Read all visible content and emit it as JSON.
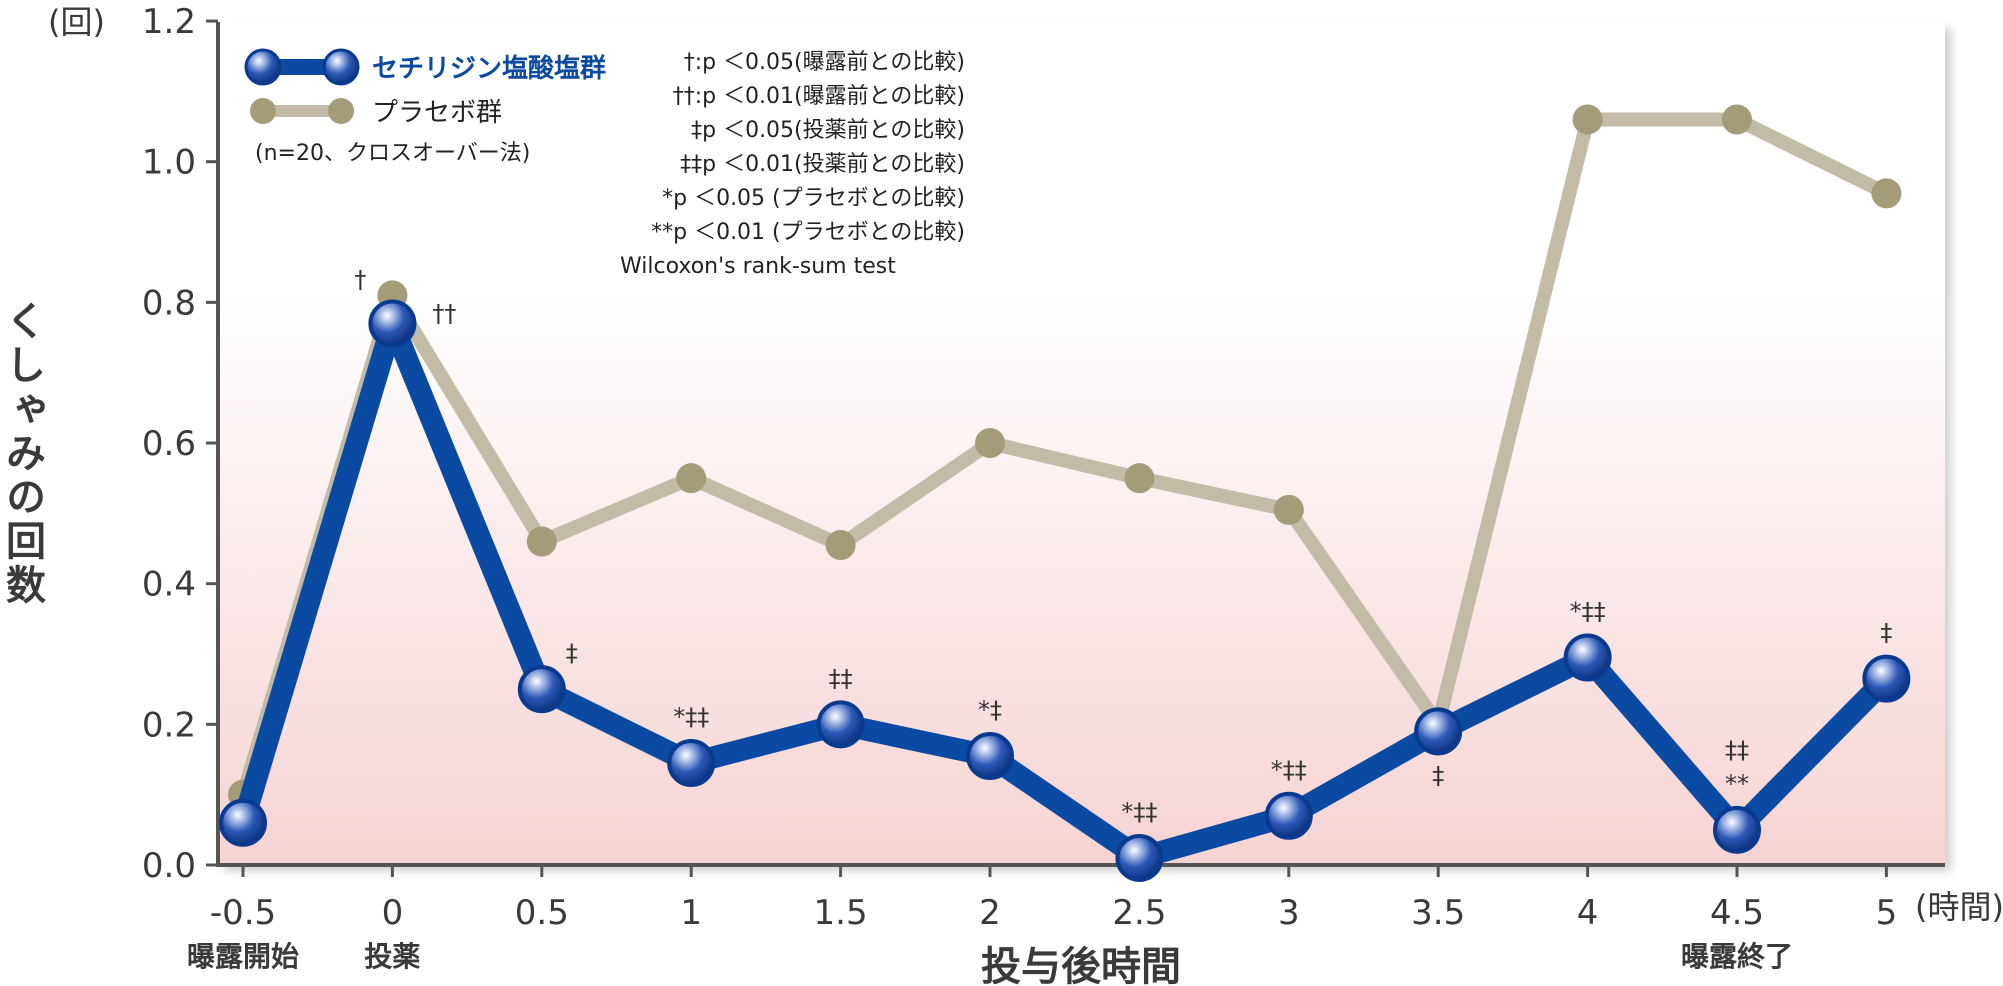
{
  "chart_data": {
    "type": "line",
    "y_unit": "(回)",
    "x_unit": "(時間)",
    "ylabel": "くしゃみの回数",
    "xlabel": "投与後時間",
    "x": [
      -0.5,
      0,
      0.5,
      1,
      1.5,
      2,
      2.5,
      3,
      3.5,
      4,
      4.5,
      5
    ],
    "x_tick_labels": [
      "-0.5",
      "0",
      "0.5",
      "1",
      "1.5",
      "2",
      "2.5",
      "3",
      "3.5",
      "4",
      "4.5",
      "5"
    ],
    "y_ticks": [
      "0.0",
      "0.2",
      "0.4",
      "0.6",
      "0.8",
      "1.0",
      "1.2"
    ],
    "ylim": [
      0,
      1.2
    ],
    "x_sublabels": [
      {
        "x": -0.5,
        "text": "曝露開始"
      },
      {
        "x": 0,
        "text": "投薬"
      },
      {
        "x": 4.5,
        "text": "曝露終了"
      }
    ],
    "series": [
      {
        "name": "プラセボ群",
        "color": "#c2bba6",
        "marker_color": "#a49c78",
        "values": [
          0.1,
          0.81,
          0.46,
          0.55,
          0.455,
          0.6,
          0.55,
          0.505,
          0.2,
          1.06,
          1.06,
          0.955
        ]
      },
      {
        "name": "セチリジン塩酸塩群",
        "color": "#0a4aa3",
        "marker_color": "#1f4fae",
        "values": [
          0.06,
          0.77,
          0.25,
          0.145,
          0.2,
          0.155,
          0.01,
          0.07,
          0.19,
          0.295,
          0.05,
          0.265
        ]
      }
    ],
    "significance": [
      {
        "x": 0,
        "y": 0.81,
        "text": "†",
        "pos": "above-left"
      },
      {
        "x": 0,
        "y": 0.77,
        "text": "††",
        "pos": "right"
      },
      {
        "x": 0.5,
        "y": 0.25,
        "text": "‡",
        "pos": "above-right"
      },
      {
        "x": 1,
        "y": 0.145,
        "text": "*‡‡",
        "pos": "above"
      },
      {
        "x": 1.5,
        "y": 0.2,
        "text": "‡‡",
        "pos": "above"
      },
      {
        "x": 2,
        "y": 0.155,
        "text": "*‡",
        "pos": "above"
      },
      {
        "x": 2.5,
        "y": 0.01,
        "text": "*‡‡",
        "pos": "above"
      },
      {
        "x": 3,
        "y": 0.07,
        "text": "*‡‡",
        "pos": "above"
      },
      {
        "x": 3.5,
        "y": 0.19,
        "text": "‡",
        "pos": "below"
      },
      {
        "x": 4,
        "y": 0.295,
        "text": "*‡‡",
        "pos": "above"
      },
      {
        "x": 4.5,
        "y": 0.05,
        "text": "‡‡",
        "pos": "above2"
      },
      {
        "x": 4.5,
        "y": 0.05,
        "text": "**",
        "pos": "above"
      },
      {
        "x": 5,
        "y": 0.265,
        "text": "‡",
        "pos": "above"
      }
    ],
    "legend": {
      "position": "top-left",
      "n_note": "(n=20、クロスオーバー法)"
    },
    "notes": [
      "†:p ＜0.05(曝露前との比較)",
      "††:p ＜0.01(曝露前との比較)",
      "‡p ＜0.05(投薬前との比較)",
      "‡‡p ＜0.01(投薬前との比較)",
      "*p ＜0.05 (プラセボとの比較)",
      "**p ＜0.01 (プラセボとの比較)",
      "Wilcoxon's rank-sum test"
    ],
    "grid": false
  }
}
